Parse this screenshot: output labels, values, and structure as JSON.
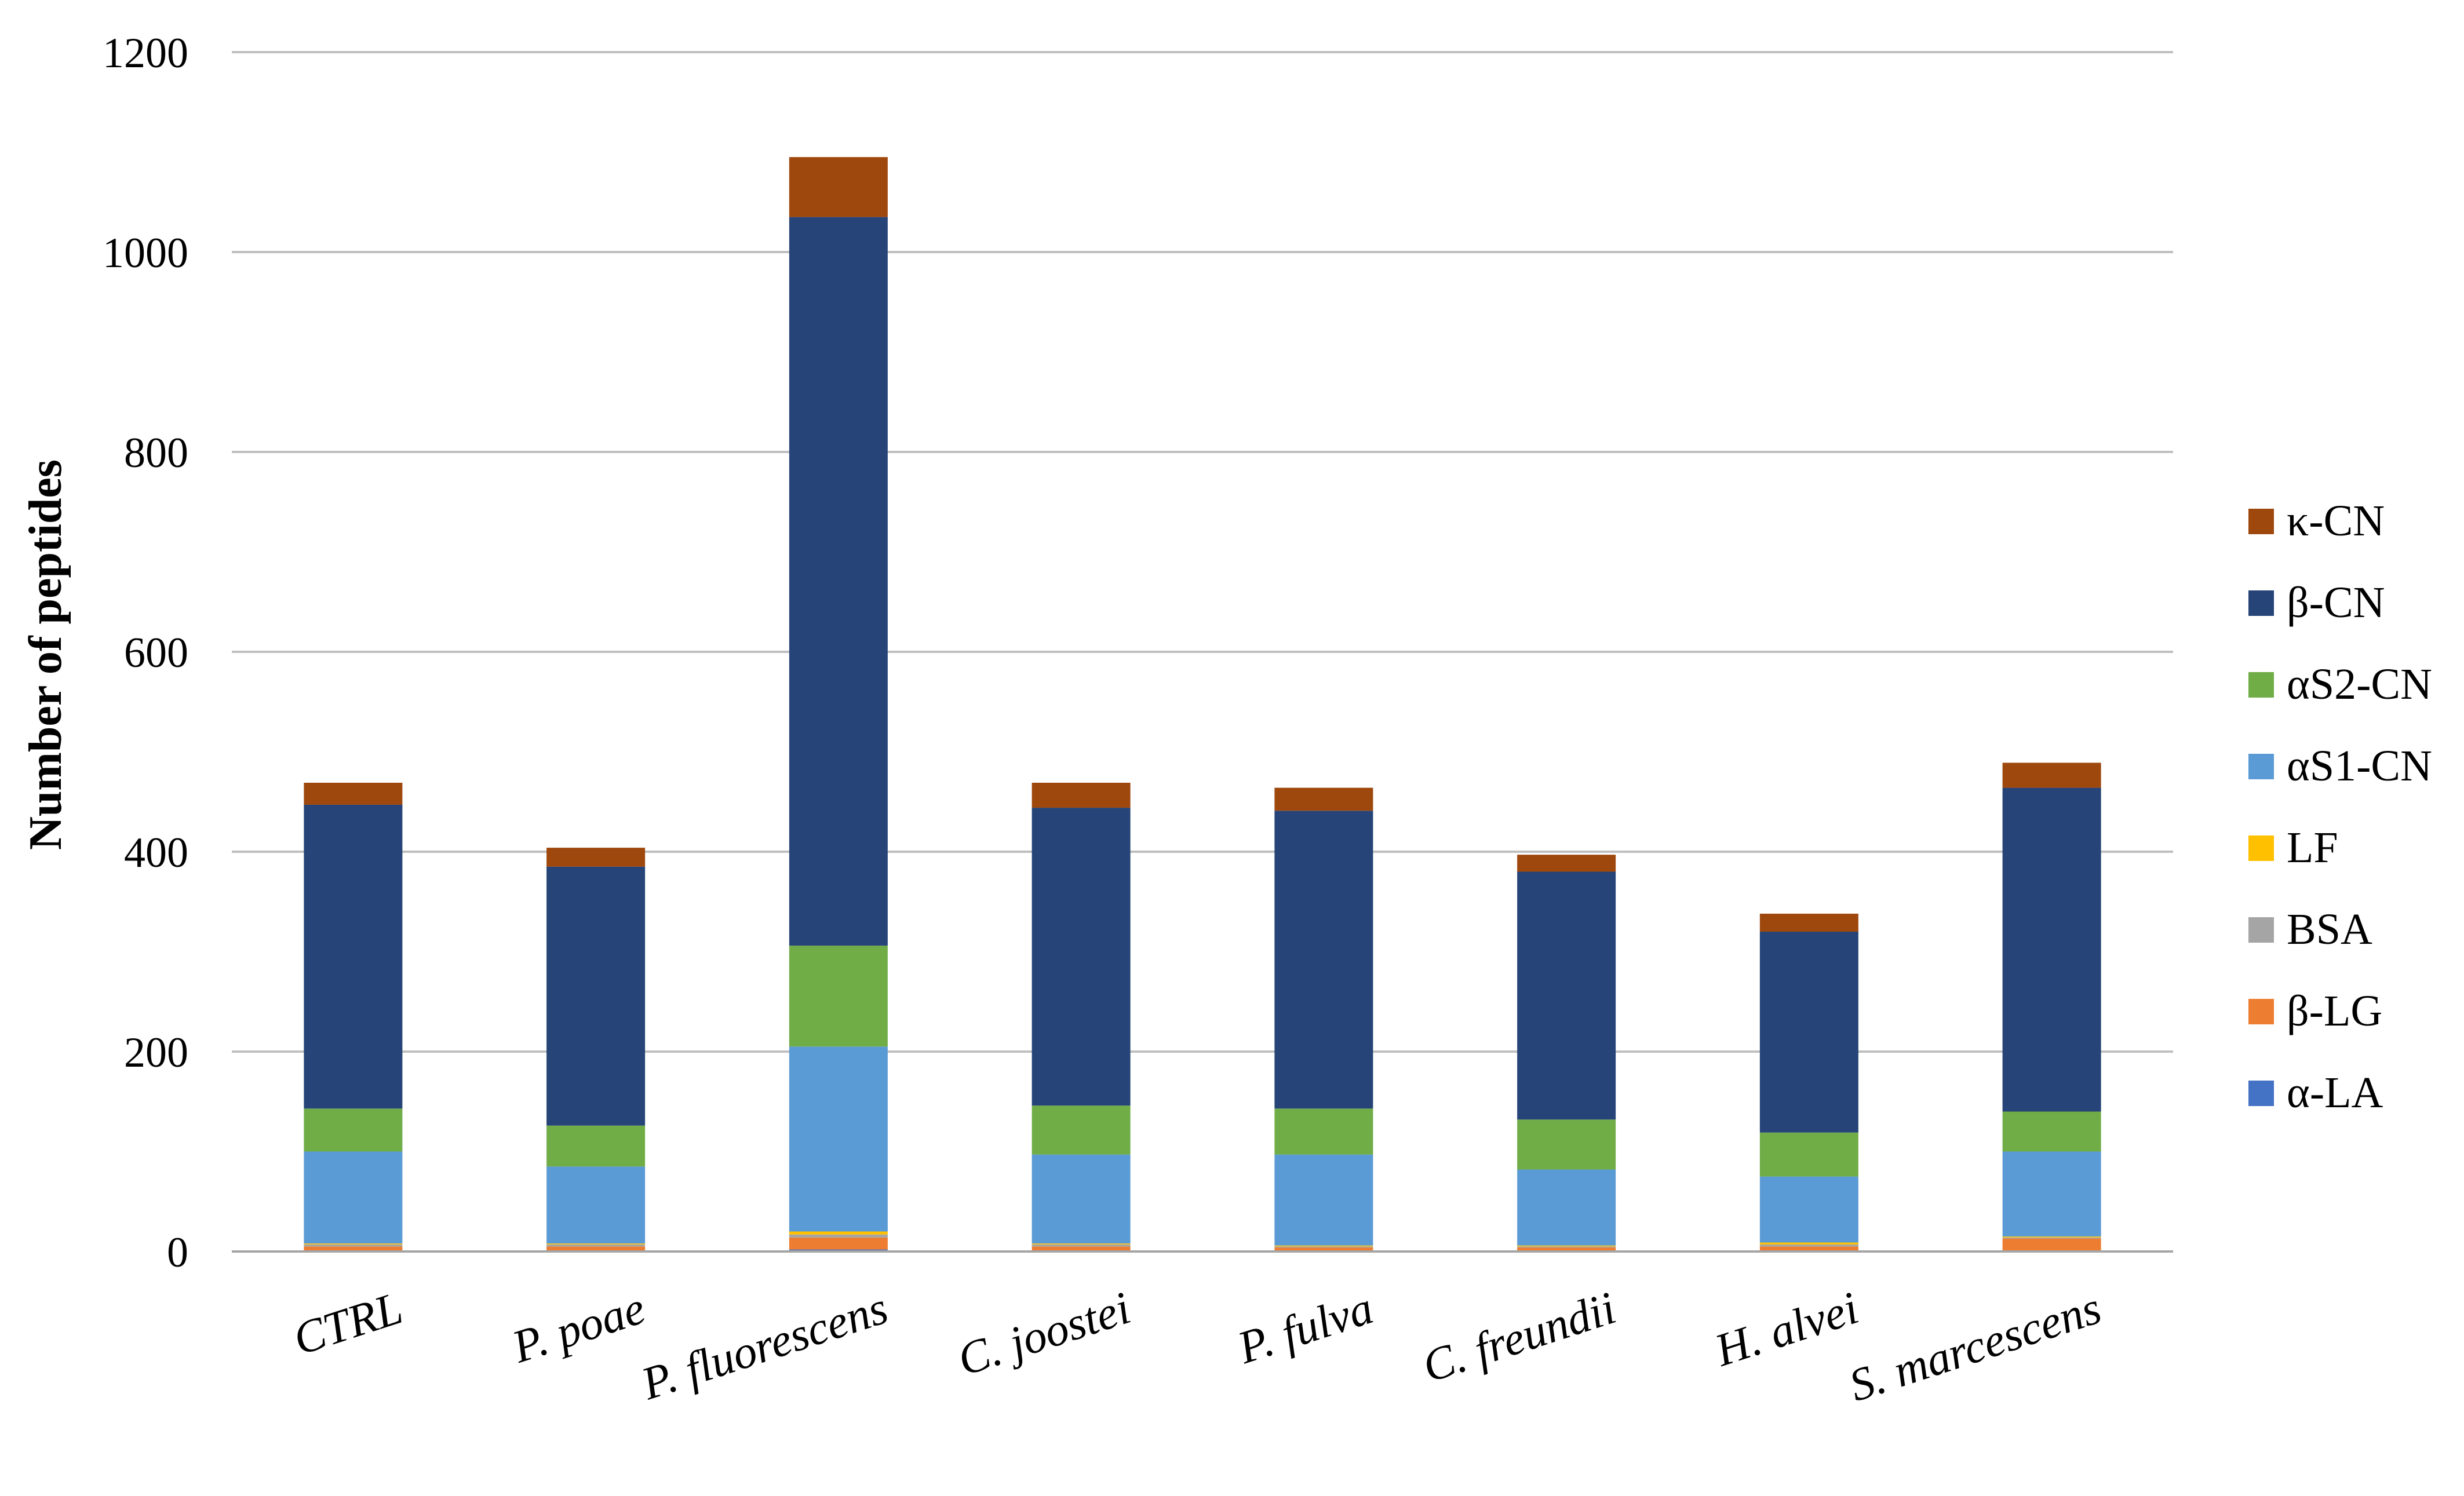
{
  "chart_data": {
    "type": "bar",
    "stacked": true,
    "title": "",
    "xlabel": "",
    "ylabel": "Number of peptides",
    "ylim": [
      0,
      1200
    ],
    "yticks": [
      0,
      200,
      400,
      600,
      800,
      1000,
      1200
    ],
    "grid": true,
    "legend_position": "right",
    "categories": [
      "CTRL",
      "P. poae",
      "P. fluorescens",
      "C. joostei",
      "P. fulva",
      "C. freundii",
      "H. alvei",
      "S. marcescens"
    ],
    "series": [
      {
        "name": "α-LA",
        "color": "#4472c4",
        "values": [
          1,
          1,
          2,
          1,
          1,
          1,
          1,
          1
        ]
      },
      {
        "name": "β-LG",
        "color": "#ed7d31",
        "values": [
          4,
          4,
          12,
          4,
          3,
          3,
          4,
          12
        ]
      },
      {
        "name": "BSA",
        "color": "#a5a5a5",
        "values": [
          2,
          2,
          3,
          2,
          1,
          1,
          2,
          1
        ]
      },
      {
        "name": "LF",
        "color": "#ffc000",
        "values": [
          1,
          1,
          3,
          1,
          1,
          1,
          2,
          1
        ]
      },
      {
        "name": "αS1-CN",
        "color": "#5b9bd5",
        "values": [
          92,
          77,
          185,
          89,
          91,
          76,
          66,
          85
        ]
      },
      {
        "name": "αS2-CN",
        "color": "#70ad47",
        "values": [
          43,
          41,
          101,
          49,
          46,
          50,
          44,
          40
        ]
      },
      {
        "name": "β-CN",
        "color": "#264478",
        "values": [
          304,
          259,
          729,
          298,
          298,
          248,
          201,
          324
        ]
      },
      {
        "name": "κ-CN",
        "color": "#9e480e",
        "values": [
          22,
          19,
          60,
          25,
          23,
          17,
          18,
          25
        ]
      }
    ],
    "legend_order": [
      "κ-CN",
      "β-CN",
      "αS2-CN",
      "αS1-CN",
      "LF",
      "BSA",
      "β-LG",
      "α-LA"
    ]
  }
}
